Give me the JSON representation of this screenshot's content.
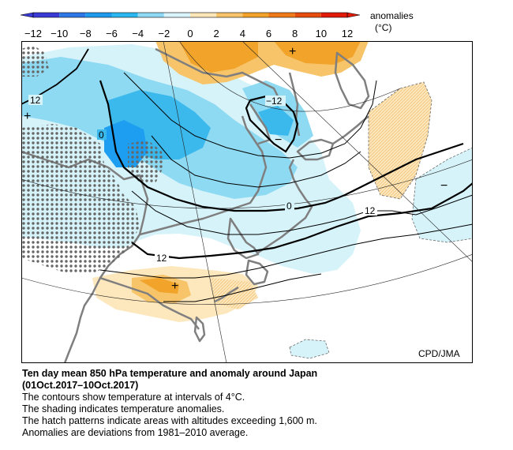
{
  "legend": {
    "unit_label_line1": "anomalies",
    "unit_label_line2": "(°C)",
    "ticks": [
      "−12",
      "−10",
      "−8",
      "−6",
      "−4",
      "−2",
      "0",
      "2",
      "4",
      "6",
      "8",
      "10",
      "12"
    ],
    "colors": [
      "#3a3ad6",
      "#2d78e6",
      "#1e9bee",
      "#2bb8f0",
      "#8fd9f5",
      "#d9f4fb",
      "#ffffff",
      "#fde6b8",
      "#f7c46a",
      "#f3a32b",
      "#f07a1a",
      "#e84d10",
      "#e21a0a"
    ]
  },
  "map": {
    "credit": "CPD/JMA",
    "contour_labels": [
      "12",
      "0",
      "−12",
      "0",
      "12",
      "12"
    ],
    "markers": [
      "+",
      "+",
      "+",
      "−",
      "−"
    ],
    "colors": {
      "ocean": "#ffffff",
      "coast": "#7f7f7f",
      "cold_light": "#d6f3fa",
      "cold_mid": "#8edaf2",
      "cold_strong": "#3bb9ec",
      "cold_deep": "#1e9ef0",
      "warm_light": "#fde7bc",
      "warm_mid": "#f7c46a",
      "warm_strong": "#f1a32a",
      "hatch": "#666666"
    }
  },
  "caption": {
    "title_line1": "Ten day mean 850 hPa temperature and anomaly around Japan",
    "title_line2": "(01Oct.2017–10Oct.2017)",
    "lines": [
      "The contours show temperature at intervals of 4°C.",
      "The shading indicates temperature anomalies.",
      "The hatch patterns indicate areas with altitudes exceeding 1,600 m.",
      "Anomalies are deviations from 1981–2010 average."
    ]
  }
}
